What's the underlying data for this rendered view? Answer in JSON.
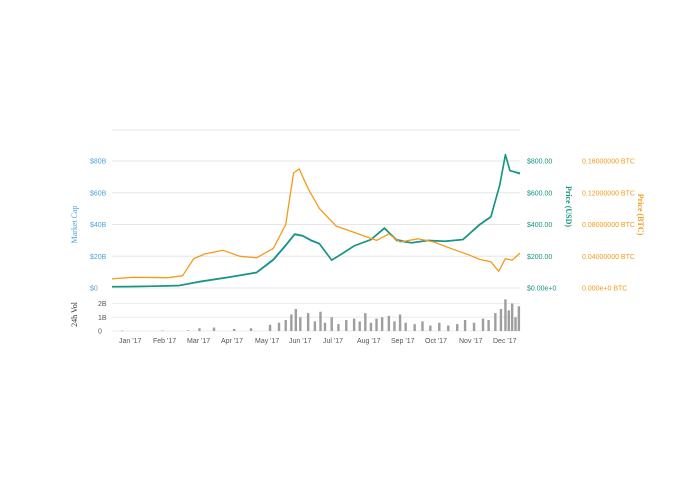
{
  "chart_data": {
    "type": "line",
    "x_labels": [
      "Jan '17",
      "Feb '17",
      "Mar '17",
      "Apr '17",
      "May '17",
      "Jun '17",
      "Jul '17",
      "Aug '17",
      "Sep '17",
      "Oct '17",
      "Nov '17",
      "Dec '17"
    ],
    "x_range": [
      "2017-01-01",
      "2017-12-31"
    ],
    "axes": {
      "market_cap": {
        "label": "Market Cap",
        "ticks": [
          "$0",
          "$20B",
          "$40B",
          "$60B",
          "$80B"
        ],
        "range": [
          0,
          80
        ],
        "color": "#4aa3df"
      },
      "price_usd": {
        "label": "Price (USD)",
        "ticks": [
          "$0.00e+0",
          "$200.00",
          "$400.00",
          "$600.00",
          "$800.00"
        ],
        "range": [
          0,
          800
        ],
        "color": "#16957f"
      },
      "price_btc": {
        "label": "Price (BTC)",
        "ticks": [
          "0.000e+0 BTC",
          "0.04000000 BTC",
          "0.08000000 BTC",
          "0.12000000 BTC",
          "0.16000000 BTC"
        ],
        "range": [
          0,
          0.16
        ],
        "color": "#f59a1b"
      },
      "volume": {
        "label": "24h Vol",
        "ticks": [
          "0",
          "1B",
          "2B"
        ],
        "range": [
          0,
          2.4
        ],
        "color": "#9e9e9e"
      }
    },
    "series": [
      {
        "name": "Market Cap",
        "axis": "market_cap",
        "color": "#4aa3df",
        "points": [
          [
            "2017-01-01",
            0.7
          ],
          [
            "2017-02-01",
            1.0
          ],
          [
            "2017-03-01",
            1.3
          ],
          [
            "2017-03-20",
            3.7
          ],
          [
            "2017-04-15",
            6.6
          ],
          [
            "2017-05-10",
            9.6
          ],
          [
            "2017-05-25",
            17.5
          ],
          [
            "2017-06-05",
            26.5
          ],
          [
            "2017-06-13",
            33.6
          ],
          [
            "2017-06-20",
            32.7
          ],
          [
            "2017-06-28",
            29.6
          ],
          [
            "2017-07-05",
            27.7
          ],
          [
            "2017-07-16",
            17.6
          ],
          [
            "2017-07-25",
            21.6
          ],
          [
            "2017-08-05",
            26.6
          ],
          [
            "2017-08-20",
            30.4
          ],
          [
            "2017-09-01",
            37.4
          ],
          [
            "2017-09-12",
            30.6
          ],
          [
            "2017-09-25",
            28.5
          ],
          [
            "2017-10-10",
            29.8
          ],
          [
            "2017-10-25",
            29.3
          ],
          [
            "2017-11-10",
            30.4
          ],
          [
            "2017-11-25",
            39.6
          ],
          [
            "2017-12-05",
            44.6
          ],
          [
            "2017-12-13",
            64.7
          ],
          [
            "2017-12-18",
            83.8
          ],
          [
            "2017-12-22",
            73.8
          ],
          [
            "2017-12-31",
            72.5
          ]
        ]
      },
      {
        "name": "Price (USD)",
        "axis": "price_usd",
        "color": "#16957f",
        "points": [
          [
            "2017-01-01",
            8
          ],
          [
            "2017-02-01",
            11
          ],
          [
            "2017-03-01",
            15
          ],
          [
            "2017-03-20",
            40
          ],
          [
            "2017-04-15",
            68
          ],
          [
            "2017-05-10",
            98
          ],
          [
            "2017-05-25",
            180
          ],
          [
            "2017-06-05",
            270
          ],
          [
            "2017-06-13",
            340
          ],
          [
            "2017-06-20",
            330
          ],
          [
            "2017-06-28",
            300
          ],
          [
            "2017-07-05",
            280
          ],
          [
            "2017-07-16",
            175
          ],
          [
            "2017-07-25",
            215
          ],
          [
            "2017-08-05",
            265
          ],
          [
            "2017-08-20",
            305
          ],
          [
            "2017-09-01",
            378
          ],
          [
            "2017-09-12",
            300
          ],
          [
            "2017-09-25",
            285
          ],
          [
            "2017-10-10",
            300
          ],
          [
            "2017-10-25",
            295
          ],
          [
            "2017-11-10",
            305
          ],
          [
            "2017-11-25",
            400
          ],
          [
            "2017-12-05",
            450
          ],
          [
            "2017-12-13",
            650
          ],
          [
            "2017-12-18",
            840
          ],
          [
            "2017-12-22",
            740
          ],
          [
            "2017-12-31",
            720
          ]
        ]
      },
      {
        "name": "Price (BTC)",
        "axis": "price_btc",
        "color": "#f59a1b",
        "points": [
          [
            "2017-01-01",
            0.0115
          ],
          [
            "2017-01-20",
            0.0135
          ],
          [
            "2017-02-20",
            0.013
          ],
          [
            "2017-03-05",
            0.0155
          ],
          [
            "2017-03-15",
            0.037
          ],
          [
            "2017-03-25",
            0.043
          ],
          [
            "2017-04-10",
            0.0475
          ],
          [
            "2017-04-25",
            0.04
          ],
          [
            "2017-05-10",
            0.038
          ],
          [
            "2017-05-25",
            0.05
          ],
          [
            "2017-06-05",
            0.08
          ],
          [
            "2017-06-12",
            0.145
          ],
          [
            "2017-06-17",
            0.15
          ],
          [
            "2017-06-25",
            0.125
          ],
          [
            "2017-07-05",
            0.1
          ],
          [
            "2017-07-20",
            0.078
          ],
          [
            "2017-08-05",
            0.07
          ],
          [
            "2017-08-25",
            0.06
          ],
          [
            "2017-09-05",
            0.068
          ],
          [
            "2017-09-15",
            0.058
          ],
          [
            "2017-10-01",
            0.062
          ],
          [
            "2017-10-15",
            0.058
          ],
          [
            "2017-10-30",
            0.05
          ],
          [
            "2017-11-15",
            0.042
          ],
          [
            "2017-11-25",
            0.036
          ],
          [
            "2017-12-05",
            0.033
          ],
          [
            "2017-12-12",
            0.021
          ],
          [
            "2017-12-18",
            0.037
          ],
          [
            "2017-12-24",
            0.035
          ],
          [
            "2017-12-31",
            0.044
          ]
        ]
      }
    ],
    "volume": {
      "name": "24h Vol",
      "unit": "B",
      "color": "#9e9e9e",
      "points": [
        [
          "2017-01-10",
          0.02
        ],
        [
          "2017-02-15",
          0.03
        ],
        [
          "2017-03-10",
          0.05
        ],
        [
          "2017-03-20",
          0.2
        ],
        [
          "2017-04-02",
          0.25
        ],
        [
          "2017-04-20",
          0.15
        ],
        [
          "2017-05-05",
          0.2
        ],
        [
          "2017-05-22",
          0.45
        ],
        [
          "2017-05-30",
          0.6
        ],
        [
          "2017-06-05",
          0.8
        ],
        [
          "2017-06-10",
          1.2
        ],
        [
          "2017-06-14",
          1.6
        ],
        [
          "2017-06-18",
          1.0
        ],
        [
          "2017-06-25",
          1.3
        ],
        [
          "2017-07-01",
          0.7
        ],
        [
          "2017-07-06",
          1.4
        ],
        [
          "2017-07-10",
          0.6
        ],
        [
          "2017-07-16",
          1.0
        ],
        [
          "2017-07-22",
          0.5
        ],
        [
          "2017-07-29",
          0.8
        ],
        [
          "2017-08-05",
          0.9
        ],
        [
          "2017-08-10",
          0.7
        ],
        [
          "2017-08-15",
          1.3
        ],
        [
          "2017-08-20",
          0.6
        ],
        [
          "2017-08-25",
          0.9
        ],
        [
          "2017-08-30",
          1.0
        ],
        [
          "2017-09-05",
          1.1
        ],
        [
          "2017-09-10",
          0.7
        ],
        [
          "2017-09-15",
          1.2
        ],
        [
          "2017-09-20",
          0.6
        ],
        [
          "2017-09-28",
          0.5
        ],
        [
          "2017-10-05",
          0.7
        ],
        [
          "2017-10-12",
          0.4
        ],
        [
          "2017-10-20",
          0.6
        ],
        [
          "2017-10-28",
          0.4
        ],
        [
          "2017-11-05",
          0.5
        ],
        [
          "2017-11-12",
          0.8
        ],
        [
          "2017-11-20",
          0.6
        ],
        [
          "2017-11-28",
          0.9
        ],
        [
          "2017-12-03",
          0.8
        ],
        [
          "2017-12-09",
          1.3
        ],
        [
          "2017-12-14",
          1.6
        ],
        [
          "2017-12-18",
          2.3
        ],
        [
          "2017-12-21",
          1.5
        ],
        [
          "2017-12-24",
          2.0
        ],
        [
          "2017-12-27",
          1.0
        ],
        [
          "2017-12-30",
          1.8
        ]
      ]
    },
    "grid": true,
    "legend": "none"
  }
}
